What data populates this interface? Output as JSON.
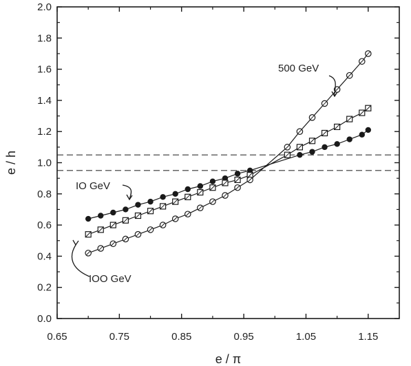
{
  "chart_data": {
    "type": "scatter",
    "xlabel": "e / π",
    "ylabel": "e / h",
    "xlim": [
      0.65,
      1.2
    ],
    "ylim": [
      0.0,
      2.0
    ],
    "x_ticks": [
      0.65,
      0.75,
      0.85,
      0.95,
      1.05,
      1.15
    ],
    "x_tick_labels": [
      "0.65",
      "0.75",
      "0.85",
      "0.95",
      "1.05",
      "1.15"
    ],
    "y_ticks": [
      0.0,
      0.2,
      0.4,
      0.6,
      0.8,
      1.0,
      1.2,
      1.4,
      1.6,
      1.8,
      2.0
    ],
    "y_tick_labels": [
      "0.0",
      "0.2",
      "0.4",
      "0.6",
      "0.8",
      "1.0",
      "1.2",
      "1.4",
      "1.6",
      "1.8",
      "2.0"
    ],
    "grid": false,
    "reference_lines": [
      1.05,
      0.95
    ],
    "series": [
      {
        "name": "10 GeV",
        "marker": "filled-circle",
        "x": [
          0.7,
          0.72,
          0.74,
          0.76,
          0.78,
          0.8,
          0.82,
          0.84,
          0.86,
          0.88,
          0.9,
          0.92,
          0.94,
          0.96,
          1.04,
          1.06,
          1.08,
          1.1,
          1.12,
          1.14,
          1.15
        ],
        "y": [
          0.64,
          0.66,
          0.68,
          0.7,
          0.73,
          0.75,
          0.78,
          0.8,
          0.83,
          0.85,
          0.88,
          0.9,
          0.93,
          0.95,
          1.05,
          1.07,
          1.1,
          1.12,
          1.15,
          1.18,
          1.21
        ]
      },
      {
        "name": "100 GeV",
        "marker": "open-square",
        "x": [
          0.7,
          0.72,
          0.74,
          0.76,
          0.78,
          0.8,
          0.82,
          0.84,
          0.86,
          0.88,
          0.9,
          0.92,
          0.94,
          0.96,
          1.02,
          1.04,
          1.06,
          1.08,
          1.1,
          1.12,
          1.14,
          1.15
        ],
        "y": [
          0.54,
          0.57,
          0.6,
          0.63,
          0.66,
          0.69,
          0.72,
          0.75,
          0.78,
          0.81,
          0.84,
          0.87,
          0.89,
          0.92,
          1.05,
          1.1,
          1.14,
          1.19,
          1.23,
          1.28,
          1.32,
          1.35
        ]
      },
      {
        "name": "500 GeV",
        "marker": "open-circle",
        "x": [
          0.7,
          0.72,
          0.74,
          0.76,
          0.78,
          0.8,
          0.82,
          0.84,
          0.86,
          0.88,
          0.9,
          0.92,
          0.94,
          0.96,
          1.02,
          1.04,
          1.06,
          1.08,
          1.1,
          1.12,
          1.14,
          1.15
        ],
        "y": [
          0.42,
          0.45,
          0.48,
          0.51,
          0.54,
          0.57,
          0.6,
          0.64,
          0.67,
          0.71,
          0.75,
          0.79,
          0.84,
          0.89,
          1.1,
          1.2,
          1.29,
          1.38,
          1.47,
          1.56,
          1.65,
          1.7
        ]
      }
    ],
    "annotations": [
      {
        "text": "500 GeV",
        "series": "500 GeV"
      },
      {
        "text": "IO GeV",
        "series": "10 GeV"
      },
      {
        "text": "IOO GeV",
        "series": "100 GeV"
      }
    ]
  }
}
